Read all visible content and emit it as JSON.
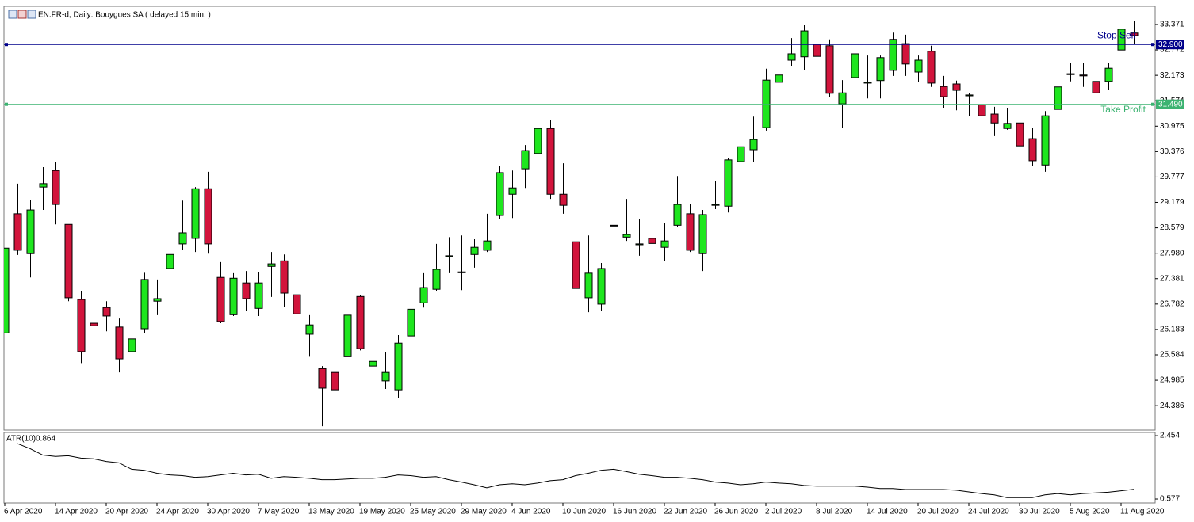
{
  "header": "EN.FR-d, Daily:  Bouygues SA ( delayed 15 min. )",
  "chart_data": [
    {
      "type": "candlestick",
      "categories": [
        "6 Apr 2020",
        null,
        null,
        null,
        "14 Apr 2020",
        null,
        null,
        null,
        "20 Apr 2020",
        null,
        null,
        null,
        "24 Apr 2020",
        null,
        null,
        null,
        "30 Apr 2020",
        null,
        null,
        null,
        "7 May 2020",
        null,
        null,
        null,
        "13 May 2020",
        null,
        null,
        null,
        "19 May 2020",
        null,
        null,
        null,
        "25 May 2020",
        null,
        null,
        null,
        "29 May 2020",
        null,
        null,
        null,
        "4 Jun 2020",
        null,
        null,
        null,
        "10 Jun 2020",
        null,
        null,
        null,
        "16 Jun 2020",
        null,
        null,
        null,
        "22 Jun 2020",
        null,
        null,
        null,
        "26 Jun 2020",
        null,
        null,
        null,
        "2 Jul 2020",
        null,
        null,
        null,
        "8 Jul 2020",
        null,
        null,
        null,
        "14 Jul 2020",
        null,
        null,
        null,
        "20 Jul 2020",
        null,
        null,
        null,
        "24 Jul 2020",
        null,
        null,
        null,
        "30 Jul 2020",
        null,
        null,
        null,
        "5 Aug 2020",
        null,
        null,
        null,
        "11 Aug 2020",
        null
      ],
      "open": [
        26.1,
        28.91,
        27.97,
        29.54,
        29.93,
        28.66,
        26.89,
        26.33,
        26.7,
        26.24,
        25.66,
        26.2,
        26.85,
        27.62,
        28.2,
        28.33,
        29.5,
        27.41,
        26.53,
        27.28,
        26.68,
        27.67,
        27.8,
        27.0,
        26.07,
        25.26,
        25.17,
        25.54,
        26.96,
        25.32,
        24.97,
        24.76,
        26.03,
        26.81,
        27.13,
        27.9,
        27.52,
        27.95,
        28.05,
        28.87,
        29.37,
        29.97,
        30.33,
        30.92,
        29.37,
        28.25,
        26.93,
        26.78,
        28.63,
        28.36,
        28.18,
        28.33,
        28.12,
        28.64,
        28.91,
        27.97,
        29.11,
        29.09,
        30.14,
        30.42,
        30.94,
        32.01,
        32.53,
        32.61,
        32.9,
        32.87,
        31.5,
        32.12,
        31.99,
        32.05,
        32.29,
        32.92,
        32.25,
        32.74,
        31.91,
        31.97,
        31.69,
        31.48,
        31.26,
        30.92,
        31.05,
        30.68,
        30.06,
        31.37,
        32.19,
        32.18,
        32.03,
        32.03,
        32.77,
        33.17
      ],
      "high": [
        28.1,
        29.62,
        29.24,
        30.01,
        30.14,
        28.66,
        27.08,
        27.11,
        26.85,
        26.44,
        26.2,
        27.52,
        27.36,
        27.97,
        29.22,
        29.54,
        29.9,
        27.77,
        27.51,
        27.56,
        27.54,
        28.01,
        27.95,
        27.17,
        26.52,
        25.32,
        25.67,
        26.52,
        27.0,
        25.64,
        25.64,
        26.05,
        26.74,
        27.51,
        28.2,
        28.36,
        28.4,
        28.31,
        28.91,
        30.03,
        29.93,
        30.53,
        31.39,
        31.11,
        30.1,
        28.4,
        28.4,
        27.75,
        29.3,
        29.26,
        28.78,
        28.63,
        28.7,
        29.8,
        29.15,
        29.0,
        29.69,
        30.23,
        30.55,
        31.2,
        32.33,
        32.27,
        33.05,
        33.37,
        33.18,
        33.02,
        32.06,
        32.72,
        32.64,
        32.64,
        33.18,
        33.13,
        32.64,
        32.87,
        32.16,
        32.05,
        31.75,
        31.56,
        31.43,
        31.41,
        31.39,
        30.94,
        31.33,
        32.16,
        32.46,
        32.46,
        32.06,
        32.46,
        33.26,
        33.46
      ],
      "low": [
        26.1,
        27.94,
        27.41,
        29.0,
        28.66,
        26.85,
        25.39,
        25.97,
        26.14,
        25.17,
        25.39,
        26.1,
        26.52,
        27.08,
        28.05,
        28.01,
        27.97,
        26.33,
        26.5,
        26.61,
        26.5,
        26.95,
        26.72,
        26.33,
        25.54,
        23.9,
        24.61,
        25.54,
        25.69,
        24.91,
        24.78,
        24.57,
        26.03,
        26.7,
        27.09,
        27.51,
        27.11,
        27.64,
        28.01,
        28.78,
        28.81,
        29.52,
        30.01,
        29.26,
        28.91,
        27.15,
        26.59,
        26.63,
        28.4,
        28.27,
        27.92,
        27.95,
        27.8,
        28.61,
        28.01,
        27.56,
        29.02,
        28.94,
        29.73,
        30.14,
        30.87,
        31.67,
        32.4,
        32.29,
        32.44,
        31.67,
        30.94,
        31.88,
        31.63,
        31.63,
        32.16,
        32.16,
        32.01,
        31.9,
        31.41,
        31.35,
        31.22,
        31.11,
        30.74,
        30.89,
        30.18,
        30.03,
        29.9,
        31.32,
        32.03,
        31.9,
        31.5,
        31.84,
        32.77,
        32.9
      ],
      "close": [
        28.1,
        28.05,
        29.0,
        29.62,
        29.13,
        26.93,
        25.66,
        26.27,
        26.5,
        25.49,
        25.96,
        27.36,
        26.91,
        27.95,
        28.46,
        29.5,
        28.2,
        26.37,
        27.39,
        26.91,
        27.28,
        27.73,
        27.04,
        26.55,
        26.29,
        24.8,
        24.76,
        26.52,
        25.73,
        25.43,
        25.17,
        25.86,
        26.66,
        27.17,
        27.6,
        27.92,
        27.54,
        28.12,
        28.27,
        29.88,
        29.52,
        30.4,
        30.92,
        29.37,
        29.11,
        27.15,
        27.51,
        27.62,
        28.64,
        28.42,
        28.2,
        28.21,
        28.27,
        29.13,
        28.05,
        28.89,
        29.13,
        30.18,
        30.49,
        30.66,
        32.06,
        32.18,
        32.68,
        33.22,
        32.62,
        31.75,
        31.76,
        32.68,
        32.01,
        32.59,
        33.02,
        32.44,
        32.53,
        31.99,
        31.67,
        31.82,
        31.71,
        31.22,
        31.05,
        31.04,
        30.51,
        30.16,
        31.22,
        31.9,
        32.21,
        32.16,
        31.76,
        32.34,
        33.26,
        33.11
      ],
      "up_color": "#1ee61e",
      "down_color": "#d2143c",
      "ylim": [
        23.81,
        33.8
      ],
      "yticks": [
        33.371,
        32.772,
        32.173,
        31.574,
        30.975,
        30.376,
        29.777,
        29.179,
        28.579,
        {
          "value": 27.98,
          "label": "27.980"
        },
        27.381,
        26.782,
        26.183,
        25.584,
        24.985,
        24.386
      ],
      "levels": [
        {
          "name": "Stop Sell",
          "value": 32.9,
          "value_label": "32.900",
          "color": "#00008b"
        },
        {
          "name": "Take Profit",
          "value": 31.49,
          "value_label": "31.490",
          "color": "#3cb371"
        }
      ]
    },
    {
      "type": "line",
      "name": "ATR(10)",
      "last_value": 0.864,
      "color": "#000000",
      "values": [
        null,
        2.22,
        2.07,
        1.88,
        1.84,
        1.86,
        1.79,
        1.77,
        1.69,
        1.65,
        1.46,
        1.43,
        1.34,
        1.29,
        1.27,
        1.22,
        1.24,
        1.29,
        1.34,
        1.29,
        1.31,
        1.19,
        1.24,
        1.22,
        1.19,
        1.15,
        1.15,
        1.17,
        1.19,
        1.19,
        1.22,
        1.29,
        1.27,
        1.22,
        1.24,
        1.15,
        1.08,
        1.0,
        0.91,
        1.0,
        1.03,
        1.0,
        1.05,
        1.12,
        1.15,
        1.27,
        1.34,
        1.43,
        1.46,
        1.39,
        1.31,
        1.27,
        1.22,
        1.22,
        1.19,
        1.15,
        1.08,
        1.05,
        1.0,
        1.03,
        1.08,
        1.05,
        1.03,
        0.98,
        0.96,
        0.96,
        0.96,
        0.96,
        0.93,
        0.89,
        0.89,
        0.86,
        0.86,
        0.86,
        0.86,
        0.84,
        0.79,
        0.74,
        0.7,
        0.62,
        0.62,
        0.62,
        0.7,
        0.74,
        0.7,
        0.74,
        0.76,
        0.78,
        0.82,
        0.864
      ],
      "ylim": [
        0.46,
        2.55
      ],
      "yticks": [
        2.454,
        0.577
      ]
    }
  ]
}
